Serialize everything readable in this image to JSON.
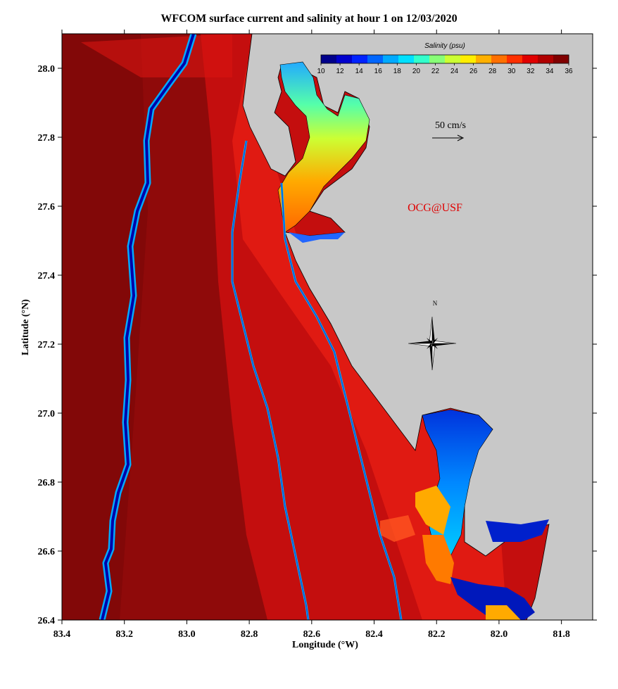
{
  "title": "WFCOM surface current and salinity at hour 1 on 12/03/2020",
  "watermark": "OCG@USF",
  "watermark_color": "#e00000",
  "scale_label": "50 cm/s",
  "north_label": "N",
  "colorbar": {
    "title": "Salinity (psu)",
    "ticks": [
      "10",
      "12",
      "14",
      "16",
      "18",
      "20",
      "22",
      "24",
      "26",
      "28",
      "30",
      "32",
      "34",
      "36"
    ],
    "colors": [
      "#00008b",
      "#0000cd",
      "#0022ff",
      "#0066ff",
      "#00aaff",
      "#00e0ff",
      "#33ffcc",
      "#88ff77",
      "#ccff33",
      "#ffee00",
      "#ffb000",
      "#ff7000",
      "#ff3000",
      "#e00000",
      "#b00000",
      "#800000"
    ]
  },
  "axes": {
    "xlabel": "Longitude (°W)",
    "ylabel": "Latitude (°N)",
    "xticks": [
      "83.4",
      "83.2",
      "83.0",
      "82.8",
      "82.6",
      "82.4",
      "82.2",
      "82.0",
      "81.8"
    ],
    "yticks": [
      "28.0",
      "27.8",
      "27.6",
      "27.4",
      "27.2",
      "27.0",
      "26.8",
      "26.6",
      "26.4"
    ],
    "xlim": [
      83.4,
      81.7
    ],
    "ylim": [
      26.4,
      28.1
    ]
  },
  "colors": {
    "land": "#c8c8c8",
    "offshore_deep": "#8f0a0a",
    "shelf": "#c80e0e",
    "coastal": "#ee1a10"
  }
}
